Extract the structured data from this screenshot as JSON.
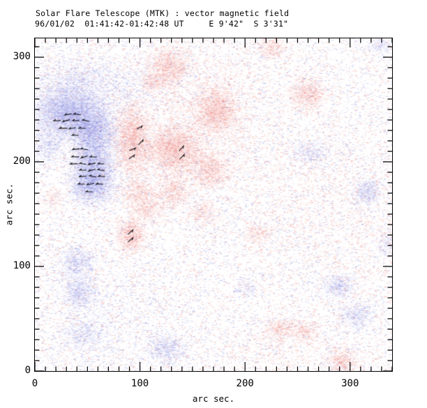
{
  "chart_data": {
    "type": "heatmap",
    "title": "Solar Flare Telescope (MTK) : vector magnetic field",
    "subtitle": "96/01/02  01:41:42-01:42:48 UT     E 9'42\"  S 3'31\"",
    "xlabel": "arc sec.",
    "ylabel": "arc sec.",
    "xlim": [
      0,
      340
    ],
    "ylim": [
      0,
      318
    ],
    "xticks": [
      0,
      100,
      200,
      300
    ],
    "yticks": [
      0,
      100,
      200,
      300
    ],
    "minor_tick_step": 10,
    "grid": false,
    "legend": "none",
    "colors": {
      "background": "#ffffff",
      "axes": "#000000",
      "text": "#000000",
      "positive_polarity_core": "#f2685f",
      "positive_polarity_speckle": "#ee7e76",
      "positive_noise": "#f0a8a2",
      "negative_polarity_core": "#5c60dc",
      "negative_polarity_speckle": "#7a7ee0",
      "negative_noise": "#a8ace6",
      "vectors": "#000000"
    },
    "region_format": "[x_arcsec, y_arcsec, sigma_x_arcsec, sigma_y_arcsec, amplitude_0to1]",
    "field_regions": [
      {
        "polarity": "negative",
        "blobs": [
          [
            33,
            247,
            19,
            13,
            0.85
          ],
          [
            55,
            230,
            12,
            11,
            0.9
          ],
          [
            55,
            200,
            11,
            14,
            1.0
          ],
          [
            54,
            177,
            11,
            10,
            0.85
          ],
          [
            12,
            215,
            8,
            10,
            0.4
          ],
          [
            40,
            276,
            24,
            14,
            0.28
          ],
          [
            90,
            272,
            15,
            12,
            0.16
          ],
          [
            40,
            104,
            8,
            9,
            0.55
          ],
          [
            42,
            75,
            8,
            8,
            0.6
          ],
          [
            126,
            22,
            10,
            8,
            0.5
          ],
          [
            316,
            171,
            7,
            7,
            0.55
          ],
          [
            289,
            81,
            8,
            7,
            0.45
          ],
          [
            262,
            209,
            9,
            7,
            0.35
          ],
          [
            46,
            35,
            12,
            8,
            0.28
          ],
          [
            328,
            312,
            6,
            5,
            0.35
          ],
          [
            335,
            122,
            5,
            7,
            0.3
          ],
          [
            202,
            80,
            5,
            5,
            0.3
          ],
          [
            305,
            53,
            9,
            7,
            0.4
          ],
          [
            66,
            55,
            40,
            30,
            0.07
          ]
        ]
      },
      {
        "polarity": "positive",
        "blobs": [
          [
            93,
            222,
            9,
            18,
            0.8
          ],
          [
            132,
            212,
            15,
            12,
            0.9
          ],
          [
            172,
            250,
            11,
            12,
            0.8
          ],
          [
            166,
            192,
            11,
            9,
            0.6
          ],
          [
            127,
            291,
            10,
            11,
            0.7
          ],
          [
            111,
            277,
            6,
            5,
            0.5
          ],
          [
            225,
            309,
            8,
            6,
            0.5
          ],
          [
            259,
            265,
            10,
            8,
            0.7
          ],
          [
            91,
            130,
            7,
            9,
            0.9
          ],
          [
            108,
            155,
            8,
            7,
            0.5
          ],
          [
            212,
            132,
            7,
            6,
            0.4
          ],
          [
            292,
            9,
            8,
            7,
            0.7
          ],
          [
            255,
            39,
            8,
            6,
            0.45
          ],
          [
            232,
            40,
            8,
            6,
            0.4
          ],
          [
            159,
            152,
            8,
            7,
            0.3
          ],
          [
            98,
            169,
            9,
            8,
            0.5
          ],
          [
            131,
            171,
            9,
            8,
            0.6
          ],
          [
            153,
            242,
            45,
            42,
            0.11
          ],
          [
            285,
            155,
            50,
            48,
            0.065
          ],
          [
            17,
            165,
            5,
            5,
            0.3
          ],
          [
            222,
            20,
            30,
            15,
            0.07
          ]
        ]
      }
    ],
    "vector_format": "[x_arcsec, y_arcsec, angle_deg_ccw_from_east, length_arcsec]",
    "vectors": [
      [
        31.8,
        245.3,
        190,
        6.5
      ],
      [
        40.5,
        245.3,
        175,
        7
      ],
      [
        21.2,
        239.3,
        182,
        6.5
      ],
      [
        29.9,
        239.3,
        196,
        7
      ],
      [
        39.1,
        239.3,
        180,
        6.5
      ],
      [
        48.4,
        239.3,
        168,
        6.5
      ],
      [
        27.2,
        232,
        181,
        7.5
      ],
      [
        35.8,
        232,
        191,
        6.5
      ],
      [
        45.1,
        232,
        180,
        6.5
      ],
      [
        38.5,
        225.3,
        180,
        6
      ],
      [
        39.1,
        212,
        187,
        6.5
      ],
      [
        47.1,
        212,
        172,
        7
      ],
      [
        38.5,
        204.7,
        181,
        7
      ],
      [
        47.1,
        204.7,
        197,
        6.5
      ],
      [
        55.7,
        204.7,
        180,
        6.5
      ],
      [
        37.1,
        198,
        184,
        7
      ],
      [
        45.8,
        198,
        174,
        6.5
      ],
      [
        54.4,
        198,
        192,
        7
      ],
      [
        63,
        198,
        180,
        6
      ],
      [
        45.8,
        192,
        180,
        6.5
      ],
      [
        54.4,
        192,
        196,
        7
      ],
      [
        63,
        192,
        174,
        6.5
      ],
      [
        45.8,
        186,
        185,
        7
      ],
      [
        55.1,
        186,
        169,
        6.5
      ],
      [
        63.7,
        186,
        180,
        6.5
      ],
      [
        44.4,
        178.7,
        180,
        6.5
      ],
      [
        53.1,
        178.7,
        191,
        7
      ],
      [
        61.7,
        178.7,
        179,
        6.5
      ],
      [
        51.7,
        171.3,
        180,
        6
      ],
      [
        99.5,
        232.7,
        32,
        6
      ],
      [
        100.8,
        218.7,
        48,
        6.5
      ],
      [
        92.9,
        212,
        22,
        6.5
      ],
      [
        92.2,
        204.7,
        35,
        6.5
      ],
      [
        139.3,
        212.7,
        48,
        6.5
      ],
      [
        140,
        204.7,
        46,
        6.5
      ],
      [
        90.9,
        132.7,
        42,
        6.5
      ],
      [
        90.9,
        125.3,
        40,
        6.5
      ]
    ]
  }
}
